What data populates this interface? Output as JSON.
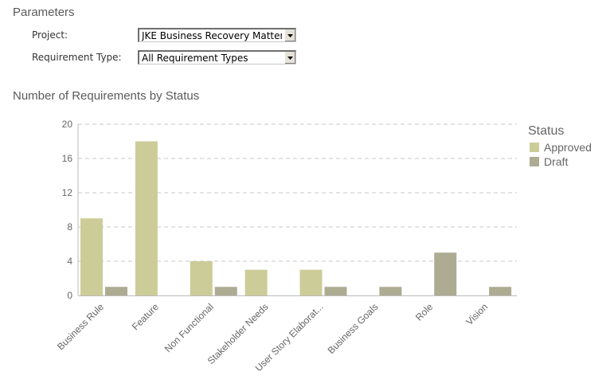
{
  "parameters": {
    "heading": "Parameters",
    "project": {
      "label": "Project:",
      "value": "JKE Business Recovery Matters"
    },
    "requirement_type": {
      "label": "Requirement Type:",
      "value": "All Requirement Types"
    }
  },
  "icons": {
    "dropdown": "chevron-down-icon"
  },
  "chart_data": {
    "type": "bar",
    "title": "Number of Requirements by Status",
    "xlabel": "",
    "ylabel": "",
    "ylim": [
      0,
      20
    ],
    "yticks": [
      0,
      4,
      8,
      12,
      16,
      20
    ],
    "grid": true,
    "legend": {
      "title": "Status",
      "position": "right"
    },
    "categories": [
      "Business Rule",
      "Feature",
      "Non Functional",
      "Stakeholder Needs",
      "User Story Elaborat...",
      "Business Goals",
      "Role",
      "Vision"
    ],
    "series": [
      {
        "name": "Approved",
        "color": "#cccc99",
        "values": [
          9,
          18,
          4,
          3,
          3,
          0,
          0,
          0
        ]
      },
      {
        "name": "Draft",
        "color": "#adab92",
        "values": [
          1,
          0,
          1,
          0,
          1,
          1,
          5,
          1
        ]
      }
    ]
  }
}
